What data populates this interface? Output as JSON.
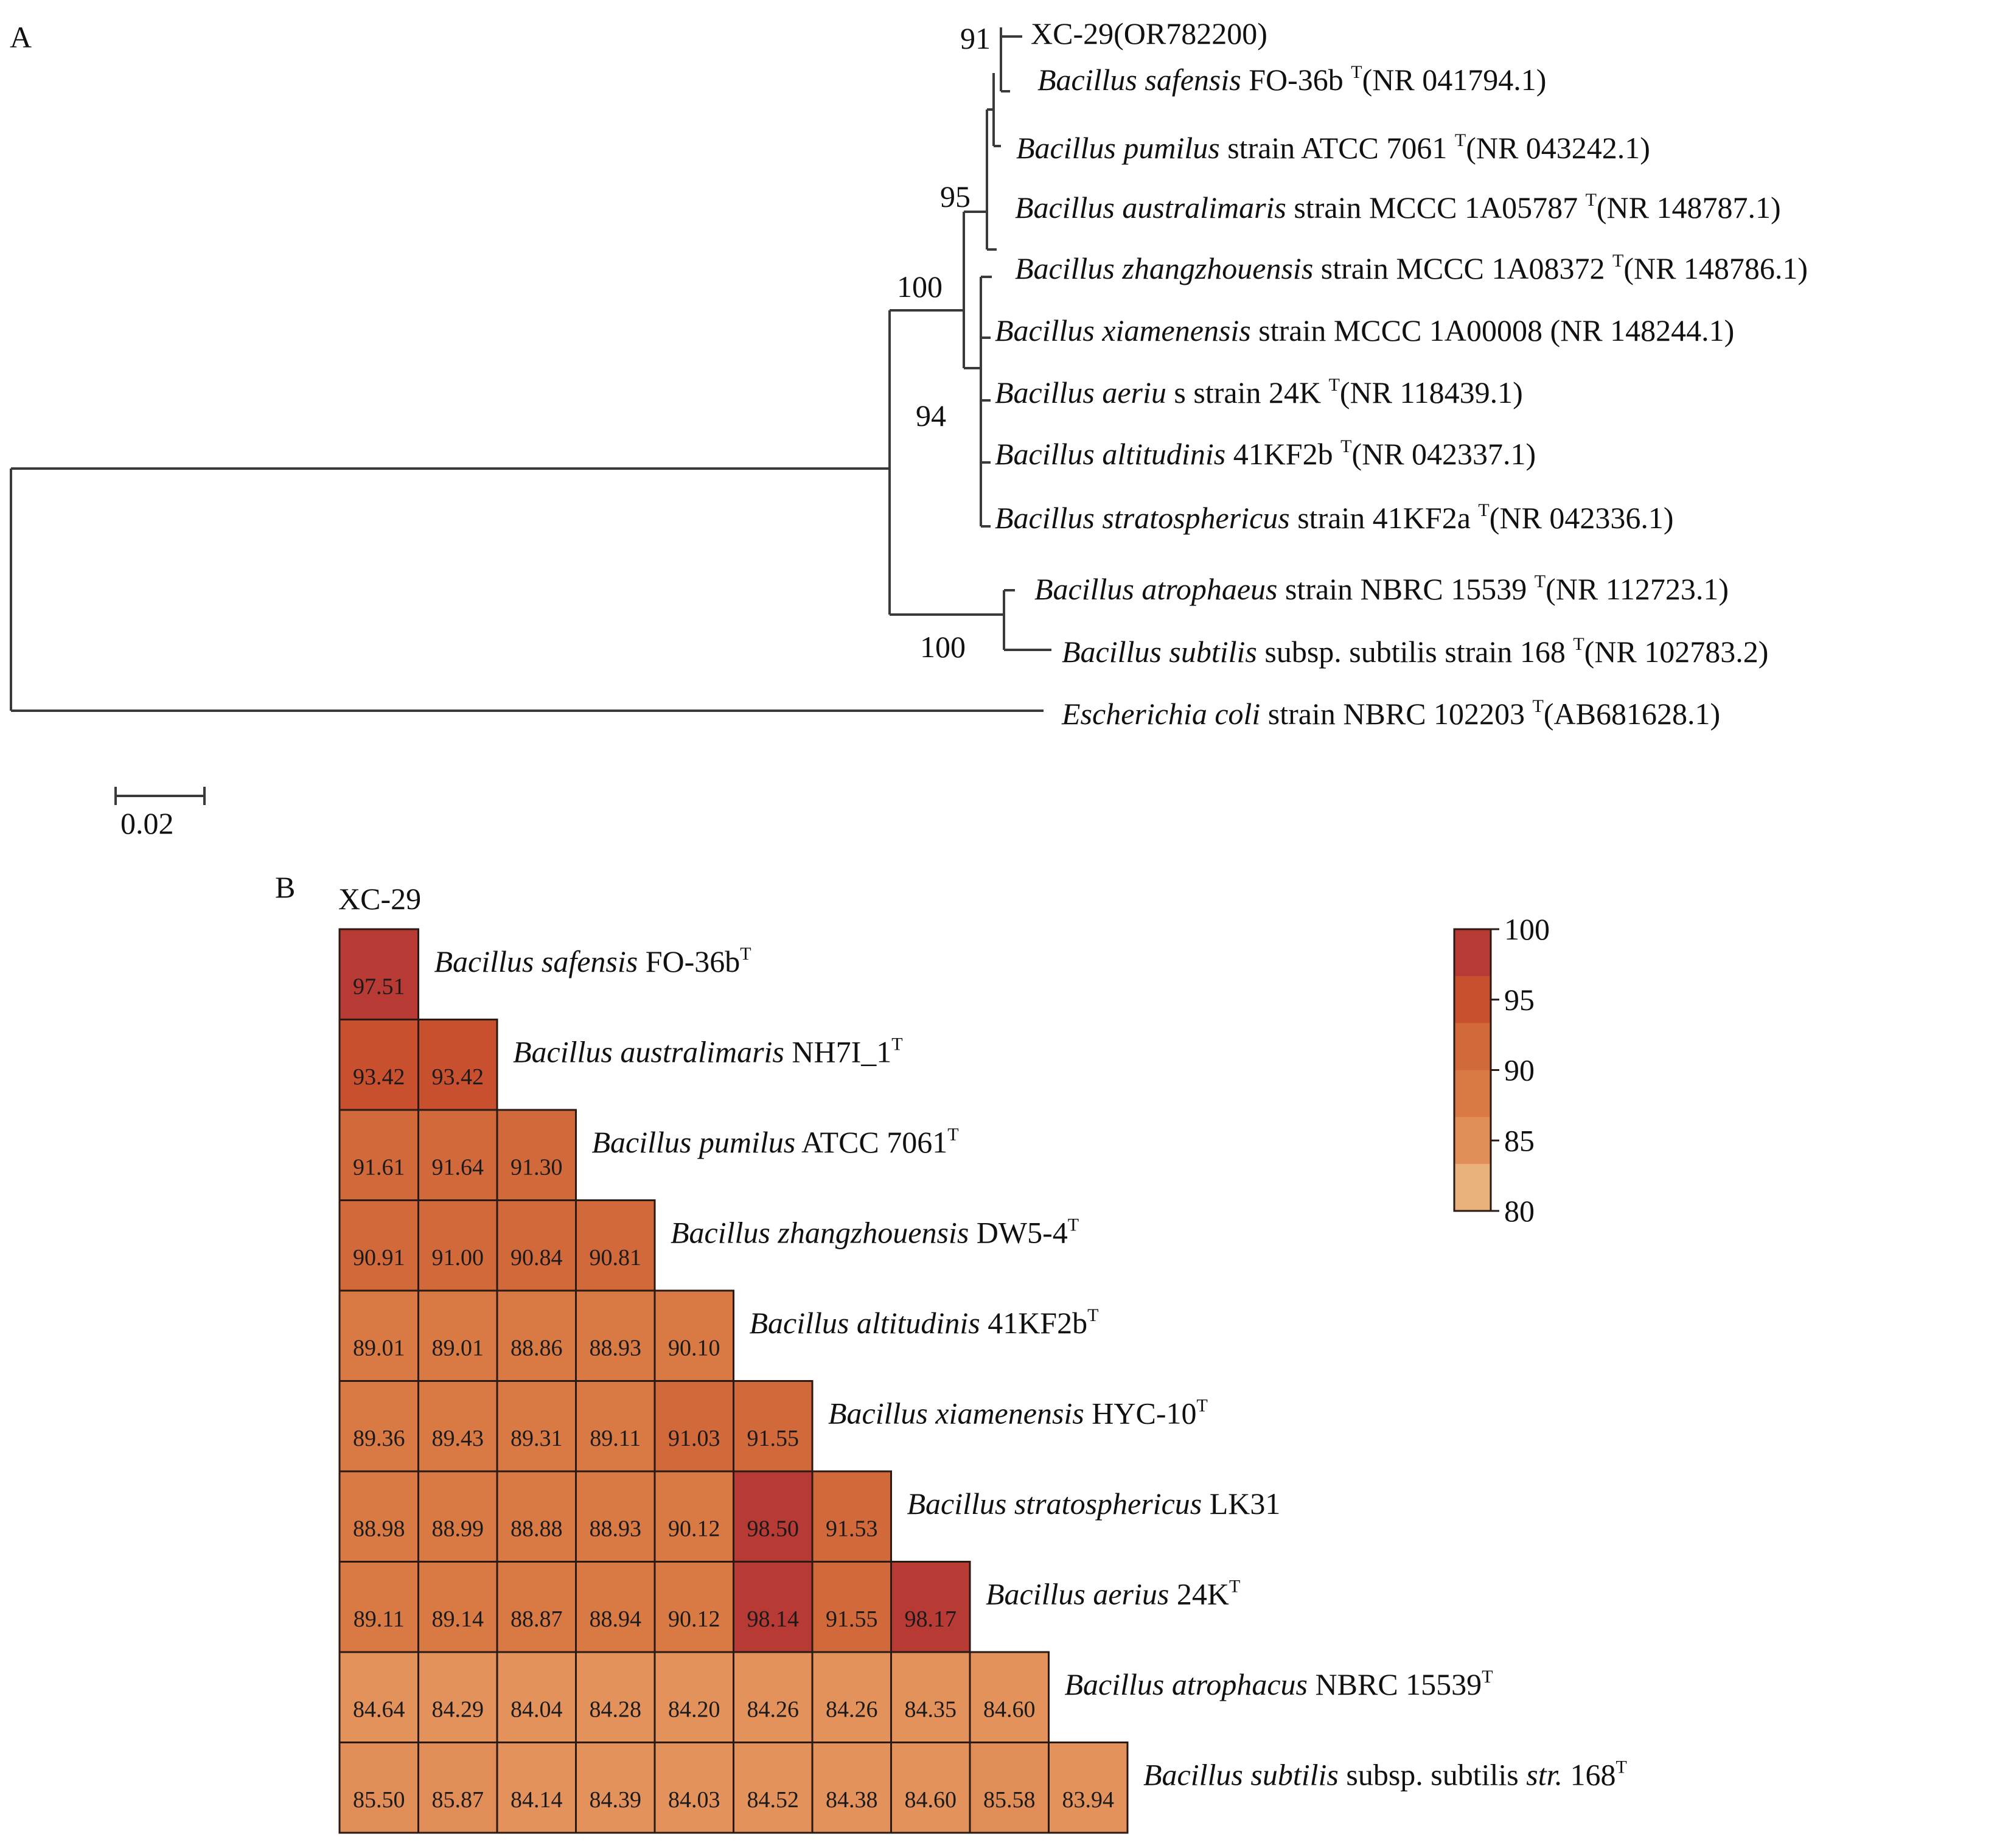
{
  "panels": {
    "a": "A",
    "b": "B"
  },
  "tree": {
    "scale_label": "0.02",
    "leaves": [
      {
        "segs": [
          {
            "t": "XC-29(OR782200)"
          }
        ]
      },
      {
        "segs": [
          {
            "t": "Bacillus safensis",
            "i": true
          },
          {
            "t": " FO-36b "
          },
          {
            "t": "T",
            "sup": true
          },
          {
            "t": "(NR 041794.1)"
          }
        ]
      },
      {
        "segs": [
          {
            "t": "Bacillus pumilus",
            "i": true
          },
          {
            "t": " strain ATCC 7061 "
          },
          {
            "t": "T",
            "sup": true
          },
          {
            "t": "(NR 043242.1)"
          }
        ]
      },
      {
        "segs": [
          {
            "t": "Bacillus australimaris",
            "i": true
          },
          {
            "t": " strain MCCC 1A05787 "
          },
          {
            "t": "T",
            "sup": true
          },
          {
            "t": "(NR 148787.1)"
          }
        ]
      },
      {
        "segs": [
          {
            "t": "Bacillus zhangzhouensis",
            "i": true
          },
          {
            "t": " strain MCCC 1A08372 "
          },
          {
            "t": "T",
            "sup": true
          },
          {
            "t": "(NR 148786.1)"
          }
        ]
      },
      {
        "segs": [
          {
            "t": "Bacillus xiamenensis",
            "i": true
          },
          {
            "t": " strain MCCC 1A00008 (NR 148244.1)"
          }
        ]
      },
      {
        "segs": [
          {
            "t": "Bacillus aeriu",
            "i": true
          },
          {
            "t": " s strain 24K "
          },
          {
            "t": "T",
            "sup": true
          },
          {
            "t": "(NR 118439.1)"
          }
        ]
      },
      {
        "segs": [
          {
            "t": "Bacillus altitudinis",
            "i": true
          },
          {
            "t": " 41KF2b "
          },
          {
            "t": "T",
            "sup": true
          },
          {
            "t": "(NR 042337.1)"
          }
        ]
      },
      {
        "segs": [
          {
            "t": "Bacillus stratosphericus",
            "i": true
          },
          {
            "t": " strain 41KF2a "
          },
          {
            "t": "T",
            "sup": true
          },
          {
            "t": "(NR 042336.1)"
          }
        ]
      },
      {
        "segs": [
          {
            "t": "Bacillus atrophaeus",
            "i": true
          },
          {
            "t": " strain NBRC 15539 "
          },
          {
            "t": "T",
            "sup": true
          },
          {
            "t": "(NR 112723.1)"
          }
        ]
      },
      {
        "segs": [
          {
            "t": "Bacillus subtilis",
            "i": true
          },
          {
            "t": " subsp. subtilis strain 168 "
          },
          {
            "t": "T",
            "sup": true
          },
          {
            "t": "(NR 102783.2)"
          }
        ]
      },
      {
        "segs": [
          {
            "t": "Escherichia coli",
            "i": true
          },
          {
            "t": " strain NBRC 102203 "
          },
          {
            "t": "T",
            "sup": true
          },
          {
            "t": "(AB681628.1)"
          }
        ]
      }
    ],
    "bootstraps": [
      "91",
      "95",
      "100",
      "94",
      "100"
    ]
  },
  "heatmap": {
    "top_label": "XC-29",
    "rows": [
      {
        "segs": [
          {
            "t": "Bacillus safensis",
            "i": true
          },
          {
            "t": " FO-36b"
          },
          {
            "t": "T",
            "sup": true
          }
        ],
        "values": [
          "97.51"
        ]
      },
      {
        "segs": [
          {
            "t": "Bacillus australimaris",
            "i": true
          },
          {
            "t": " NH7I_1"
          },
          {
            "t": "T",
            "sup": true
          }
        ],
        "values": [
          "93.42",
          "93.42"
        ]
      },
      {
        "segs": [
          {
            "t": "Bacillus pumilus",
            "i": true
          },
          {
            "t": " ATCC 7061"
          },
          {
            "t": "T",
            "sup": true
          }
        ],
        "values": [
          "91.61",
          "91.64",
          "91.30"
        ]
      },
      {
        "segs": [
          {
            "t": "Bacillus zhangzhouensis",
            "i": true
          },
          {
            "t": " DW5-4"
          },
          {
            "t": "T",
            "sup": true
          }
        ],
        "values": [
          "90.91",
          "91.00",
          "90.84",
          "90.81"
        ]
      },
      {
        "segs": [
          {
            "t": "Bacillus altitudinis",
            "i": true
          },
          {
            "t": " 41KF2b"
          },
          {
            "t": "T",
            "sup": true
          }
        ],
        "values": [
          "89.01",
          "89.01",
          "88.86",
          "88.93",
          "90.10"
        ]
      },
      {
        "segs": [
          {
            "t": "Bacillus xiamenensis",
            "i": true
          },
          {
            "t": " HYC-10"
          },
          {
            "t": "T",
            "sup": true
          }
        ],
        "values": [
          "89.36",
          "89.43",
          "89.31",
          "89.11",
          "91.03",
          "91.55"
        ]
      },
      {
        "segs": [
          {
            "t": "Bacillus stratosphericus",
            "i": true
          },
          {
            "t": " LK31"
          }
        ],
        "values": [
          "88.98",
          "88.99",
          "88.88",
          "88.93",
          "90.12",
          "98.50",
          "91.53"
        ]
      },
      {
        "segs": [
          {
            "t": "Bacillus aerius",
            "i": true
          },
          {
            "t": " 24K"
          },
          {
            "t": "T",
            "sup": true
          }
        ],
        "values": [
          "89.11",
          "89.14",
          "88.87",
          "88.94",
          "90.12",
          "98.14",
          "91.55",
          "98.17"
        ]
      },
      {
        "segs": [
          {
            "t": "Bacillus atrophacus",
            "i": true
          },
          {
            "t": " NBRC 15539"
          },
          {
            "t": "T",
            "sup": true
          }
        ],
        "values": [
          "84.64",
          "84.29",
          "84.04",
          "84.28",
          "84.20",
          "84.26",
          "84.26",
          "84.35",
          "84.60"
        ]
      },
      {
        "segs": [
          {
            "t": "Bacillus subtilis",
            "i": true
          },
          {
            "t": " subsp. subtilis "
          },
          {
            "t": "str.",
            "i": true
          },
          {
            "t": " 168"
          },
          {
            "t": "T",
            "sup": true
          }
        ],
        "values": [
          "85.50",
          "85.87",
          "84.14",
          "84.39",
          "84.03",
          "84.52",
          "84.38",
          "84.60",
          "85.58",
          "83.94"
        ]
      }
    ],
    "legend": {
      "ticks": [
        "100",
        "95",
        "90",
        "85",
        "80"
      ],
      "colors": [
        "#b83a34",
        "#c9502f",
        "#d2693a",
        "#d97a45",
        "#e08d58",
        "#e9b27d"
      ]
    }
  }
}
